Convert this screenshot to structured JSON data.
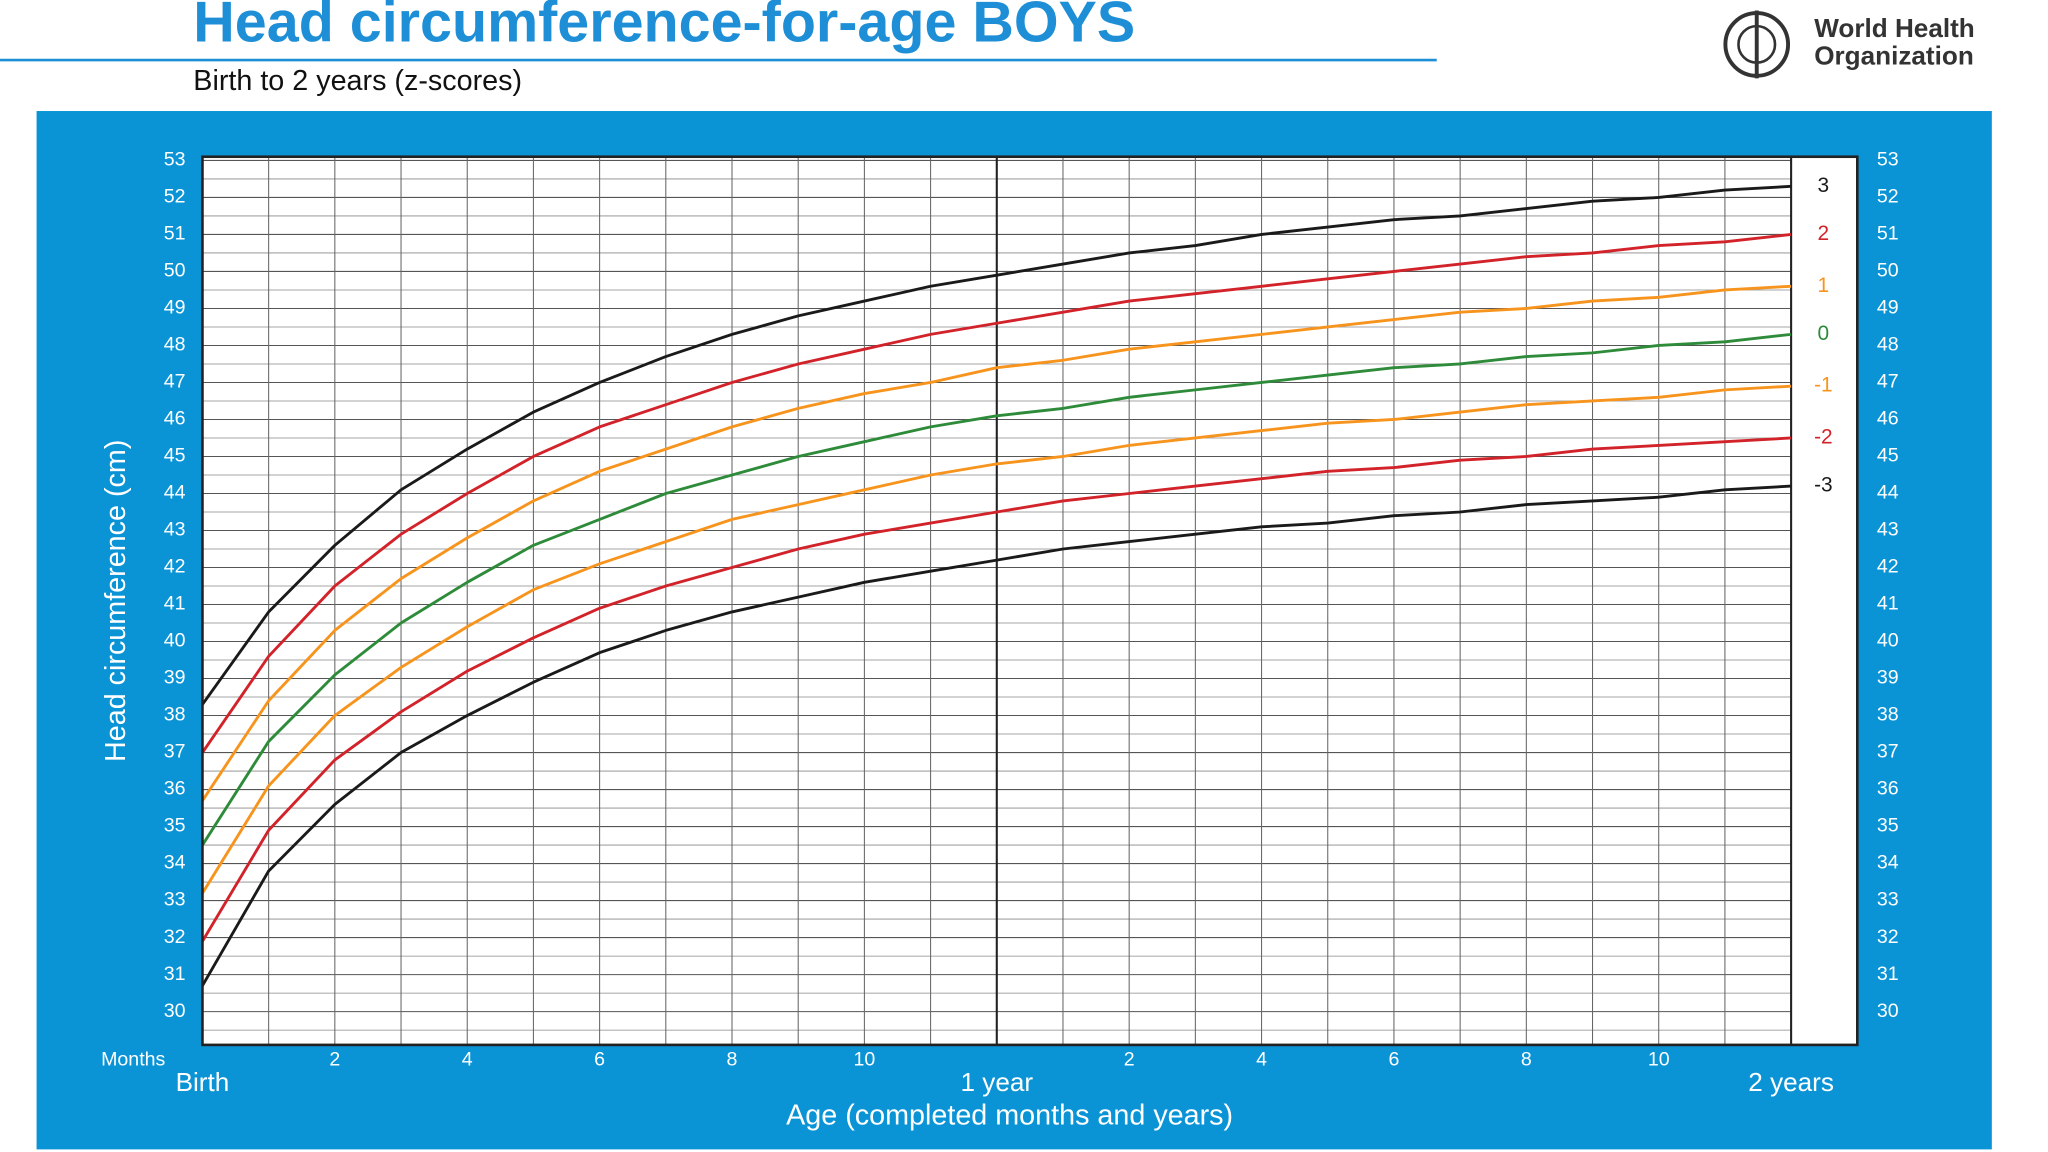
{
  "header": {
    "logo_line1": "World Health",
    "logo_line2": "Organization"
  },
  "chart_data": {
    "type": "line",
    "title": "Head circumference-for-age  BOYS",
    "subtitle": "Birth to 2 years (z-scores)",
    "y_label": "Head circumference (cm)",
    "x_label": "Age (completed months and years)",
    "x_unit_label": "Months",
    "x": [
      0,
      1,
      2,
      3,
      4,
      5,
      6,
      7,
      8,
      9,
      10,
      11,
      12,
      13,
      14,
      15,
      16,
      17,
      18,
      19,
      20,
      21,
      22,
      23,
      24
    ],
    "xlim": [
      0,
      25
    ],
    "xticks": [
      2,
      4,
      6,
      8,
      10,
      {
        "value": 14,
        "label": "2"
      },
      {
        "value": 16,
        "label": "4"
      },
      {
        "value": 18,
        "label": "6"
      },
      {
        "value": 20,
        "label": "8"
      },
      {
        "value": 22,
        "label": "10"
      }
    ],
    "xticks_major": [
      {
        "value": 0,
        "label": "Birth"
      },
      {
        "value": 12,
        "label": "1 year"
      },
      {
        "value": 24,
        "label": "2 years"
      }
    ],
    "ylim": [
      29.1,
      53.1
    ],
    "yticks": [
      30,
      31,
      32,
      33,
      34,
      35,
      36,
      37,
      38,
      39,
      40,
      41,
      42,
      43,
      44,
      45,
      46,
      47,
      48,
      49,
      50,
      51,
      52,
      53
    ],
    "grid": true,
    "series": [
      {
        "name": "3",
        "color": "#1a1a1a",
        "values": [
          38.3,
          40.8,
          42.6,
          44.1,
          45.2,
          46.2,
          47.0,
          47.7,
          48.3,
          48.8,
          49.2,
          49.6,
          49.9,
          50.2,
          50.5,
          50.7,
          51.0,
          51.2,
          51.4,
          51.5,
          51.7,
          51.9,
          52.0,
          52.2,
          52.3
        ]
      },
      {
        "name": "2",
        "color": "#d2232a",
        "values": [
          37.0,
          39.6,
          41.5,
          42.9,
          44.0,
          45.0,
          45.8,
          46.4,
          47.0,
          47.5,
          47.9,
          48.3,
          48.6,
          48.9,
          49.2,
          49.4,
          49.6,
          49.8,
          50.0,
          50.2,
          50.4,
          50.5,
          50.7,
          50.8,
          51.0
        ]
      },
      {
        "name": "1",
        "color": "#f7941d",
        "values": [
          35.7,
          38.4,
          40.3,
          41.7,
          42.8,
          43.8,
          44.6,
          45.2,
          45.8,
          46.3,
          46.7,
          47.0,
          47.4,
          47.6,
          47.9,
          48.1,
          48.3,
          48.5,
          48.7,
          48.9,
          49.0,
          49.2,
          49.3,
          49.5,
          49.6
        ]
      },
      {
        "name": "0",
        "color": "#2e8b3a",
        "values": [
          34.5,
          37.3,
          39.1,
          40.5,
          41.6,
          42.6,
          43.3,
          44.0,
          44.5,
          45.0,
          45.4,
          45.8,
          46.1,
          46.3,
          46.6,
          46.8,
          47.0,
          47.2,
          47.4,
          47.5,
          47.7,
          47.8,
          48.0,
          48.1,
          48.3
        ]
      },
      {
        "name": "-1",
        "color": "#f7941d",
        "values": [
          33.2,
          36.1,
          38.0,
          39.3,
          40.4,
          41.4,
          42.1,
          42.7,
          43.3,
          43.7,
          44.1,
          44.5,
          44.8,
          45.0,
          45.3,
          45.5,
          45.7,
          45.9,
          46.0,
          46.2,
          46.4,
          46.5,
          46.6,
          46.8,
          46.9
        ]
      },
      {
        "name": "-2",
        "color": "#d2232a",
        "values": [
          31.9,
          34.9,
          36.8,
          38.1,
          39.2,
          40.1,
          40.9,
          41.5,
          42.0,
          42.5,
          42.9,
          43.2,
          43.5,
          43.8,
          44.0,
          44.2,
          44.4,
          44.6,
          44.7,
          44.9,
          45.0,
          45.2,
          45.3,
          45.4,
          45.5
        ]
      },
      {
        "name": "-3",
        "color": "#1a1a1a",
        "values": [
          30.7,
          33.8,
          35.6,
          37.0,
          38.0,
          38.9,
          39.7,
          40.3,
          40.8,
          41.2,
          41.6,
          41.9,
          42.2,
          42.5,
          42.7,
          42.9,
          43.1,
          43.2,
          43.4,
          43.5,
          43.7,
          43.8,
          43.9,
          44.1,
          44.2
        ]
      }
    ]
  }
}
